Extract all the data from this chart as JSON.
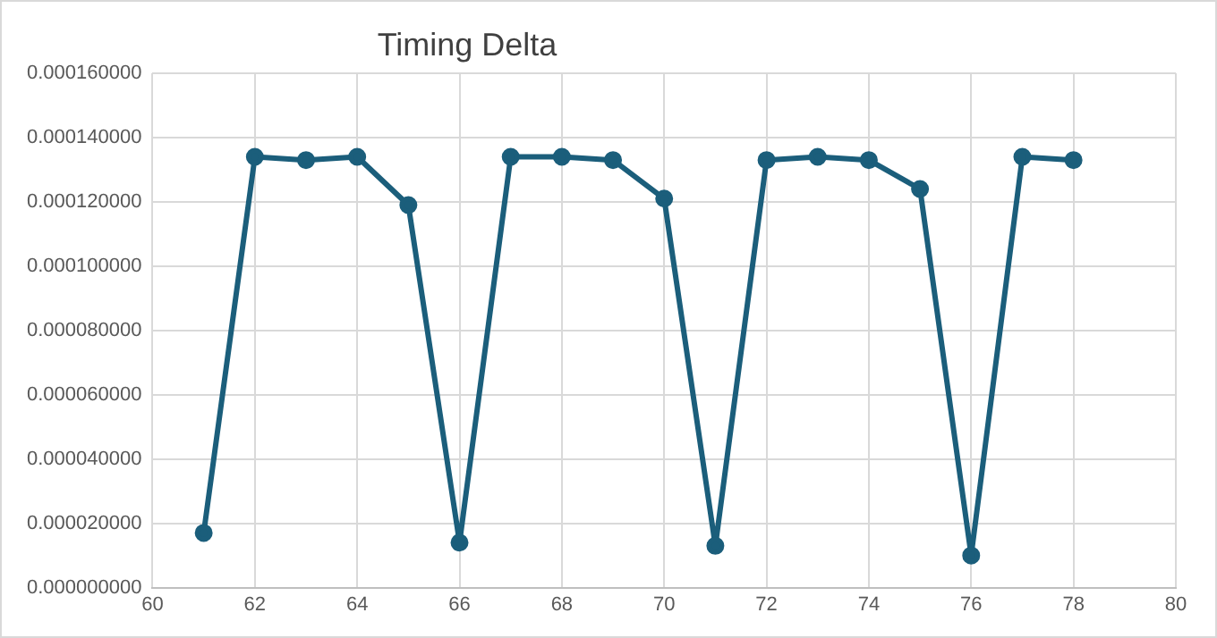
{
  "chart_data": {
    "type": "line",
    "title": "Timing Delta",
    "x": [
      61,
      62,
      63,
      64,
      65,
      66,
      67,
      68,
      69,
      70,
      71,
      72,
      73,
      74,
      75,
      76,
      77,
      78
    ],
    "series": [
      {
        "color": "#1b5e7b",
        "values": [
          1.7e-05,
          0.000134,
          0.000133,
          0.000134,
          0.000119,
          1.4e-05,
          0.000134,
          0.000134,
          0.000133,
          0.000121,
          1.3e-05,
          0.000133,
          0.000134,
          0.000133,
          0.000124,
          1e-05,
          0.000134,
          0.000133
        ]
      }
    ],
    "xlim": [
      60,
      80
    ],
    "xticks": [
      60,
      62,
      64,
      66,
      68,
      70,
      72,
      74,
      76,
      78,
      80
    ],
    "ylim": [
      0,
      0.00016
    ],
    "yticks": [
      {
        "value": 0,
        "label": "0.000000000"
      },
      {
        "value": 2e-05,
        "label": "0.000020000"
      },
      {
        "value": 4e-05,
        "label": "0.000040000"
      },
      {
        "value": 6e-05,
        "label": "0.000060000"
      },
      {
        "value": 8e-05,
        "label": "0.000080000"
      },
      {
        "value": 0.0001,
        "label": "0.000100000"
      },
      {
        "value": 0.00012,
        "label": "0.000120000"
      },
      {
        "value": 0.00014,
        "label": "0.000140000"
      },
      {
        "value": 0.00016,
        "label": "0.000160000"
      }
    ],
    "grid": true,
    "marker": "circle",
    "line_style": "solid",
    "legend": false
  }
}
